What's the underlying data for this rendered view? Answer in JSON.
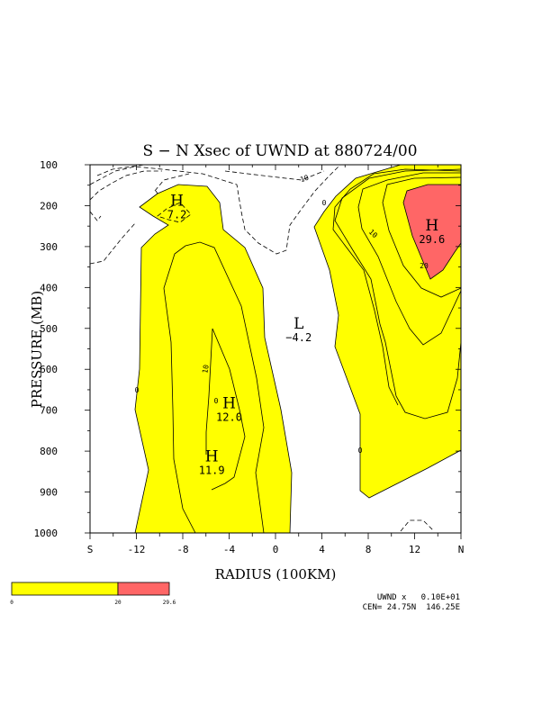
{
  "chart_data": {
    "type": "contour",
    "title": "S − N Xsec of UWND at 880724/00",
    "xlabel": "RADIUS (100KM)",
    "ylabel": "PRESSURE (MB)",
    "x_ticks": [
      "S",
      "-12",
      "-8",
      "-4",
      "0",
      "4",
      "8",
      "12",
      "N"
    ],
    "y_ticks": [
      "100",
      "200",
      "300",
      "400",
      "500",
      "600",
      "700",
      "800",
      "900",
      "1000"
    ],
    "xlim": [
      -16,
      16
    ],
    "ylim": [
      1000,
      100
    ],
    "contour_labels": [
      "10",
      "0",
      "10",
      "0",
      "10",
      "20",
      "0",
      "0"
    ],
    "extrema": [
      {
        "kind": "H",
        "value": "7.2",
        "x": -8.5,
        "p": 205
      },
      {
        "kind": "H",
        "value": "12.0",
        "x": -4,
        "p": 700
      },
      {
        "kind": "H",
        "value": "11.9",
        "x": -5.5,
        "p": 830
      },
      {
        "kind": "L",
        "value": "−4.2",
        "x": 2,
        "p": 505
      },
      {
        "kind": "H",
        "value": "29.6",
        "x": 13.5,
        "p": 265
      }
    ],
    "colorbar": {
      "levels": [
        "0",
        "20",
        "29.6"
      ],
      "colors": [
        "#ffff00",
        "#ff6666"
      ]
    },
    "footer": [
      "UWND x   0.10E+01",
      "CEN= 24.75N  146.25E"
    ]
  }
}
